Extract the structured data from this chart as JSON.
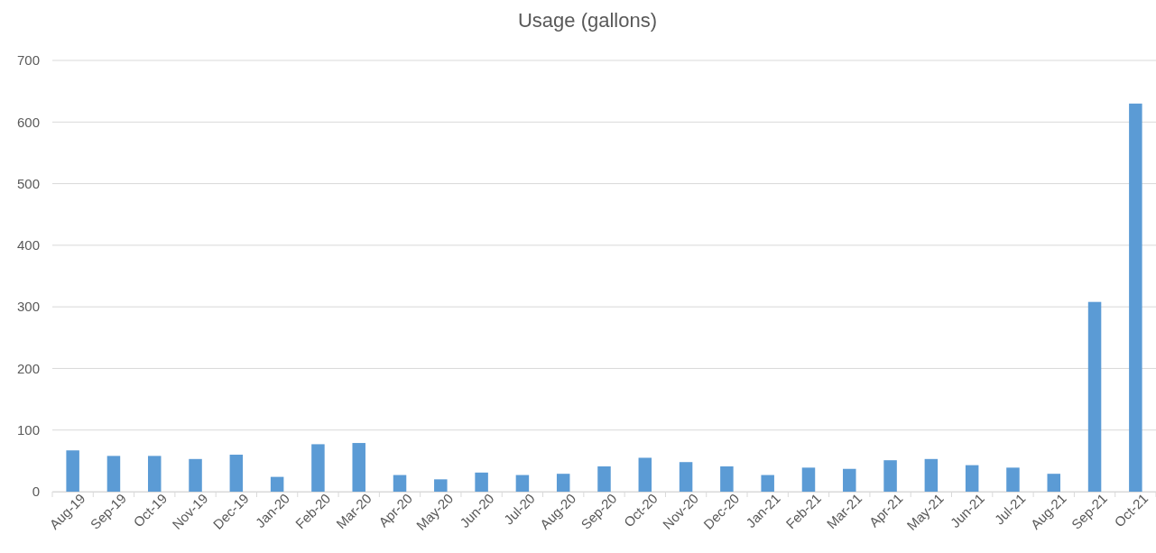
{
  "chart_data": {
    "type": "bar",
    "title": "Usage (gallons)",
    "categories": [
      "Aug-19",
      "Sep-19",
      "Oct-19",
      "Nov-19",
      "Dec-19",
      "Jan-20",
      "Feb-20",
      "Mar-20",
      "Apr-20",
      "May-20",
      "Jun-20",
      "Jul-20",
      "Aug-20",
      "Sep-20",
      "Oct-20",
      "Nov-20",
      "Dec-20",
      "Jan-21",
      "Feb-21",
      "Mar-21",
      "Apr-21",
      "May-21",
      "Jun-21",
      "Jul-21",
      "Aug-21",
      "Sep-21",
      "Oct-21"
    ],
    "values": [
      67,
      58,
      58,
      53,
      60,
      24,
      77,
      79,
      27,
      20,
      31,
      27,
      29,
      41,
      55,
      48,
      41,
      27,
      39,
      37,
      51,
      53,
      43,
      39,
      29,
      308,
      630
    ],
    "color": "#5b9bd5",
    "ylim": [
      0,
      700
    ],
    "yticks": [
      0,
      100,
      200,
      300,
      400,
      500,
      600,
      700
    ],
    "grid": "y"
  }
}
